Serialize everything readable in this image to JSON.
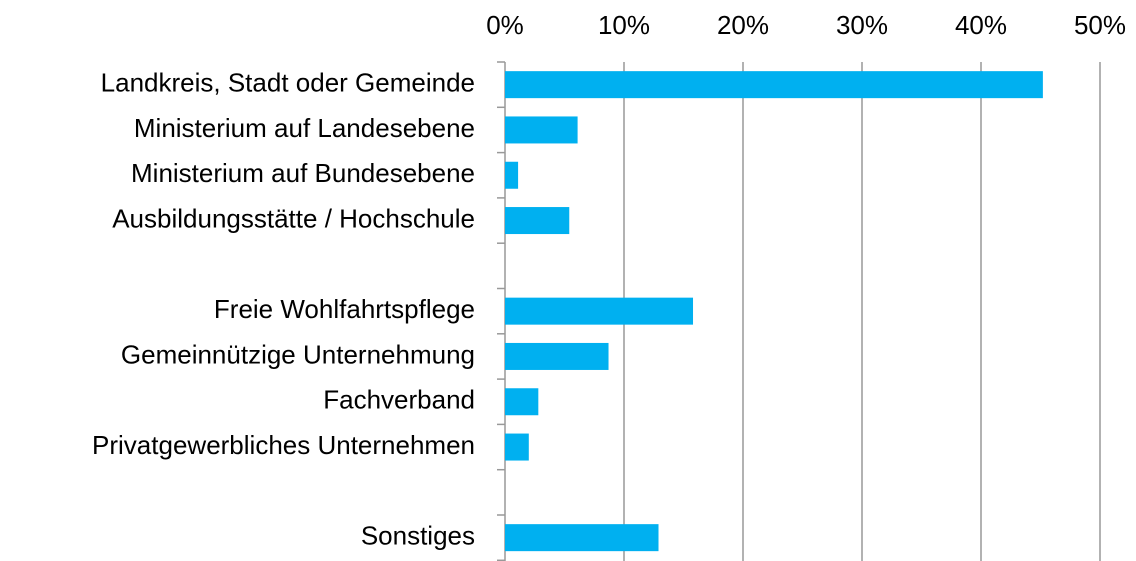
{
  "chart_data": {
    "type": "barh",
    "categories": [
      "Landkreis, Stadt oder Gemeinde",
      "Ministerium auf Landesebene",
      "Ministerium auf Bundesebene",
      "Ausbildungsstätte / Hochschule",
      null,
      "Freie Wohlfahrtspflege",
      "Gemeinnützige Unternehmung",
      "Fachverband",
      "Privatgewerbliches Unternehmen",
      null,
      "Sonstiges"
    ],
    "values": [
      45.2,
      6.1,
      1.1,
      5.4,
      null,
      15.8,
      8.7,
      2.8,
      2.0,
      null,
      12.9
    ],
    "color": "#00b0f0",
    "xlim": [
      0,
      50
    ],
    "xticks": [
      {
        "value": 0,
        "label": "0%"
      },
      {
        "value": 10,
        "label": "10%"
      },
      {
        "value": 20,
        "label": "20%"
      },
      {
        "value": 30,
        "label": "30%"
      },
      {
        "value": 40,
        "label": "40%"
      },
      {
        "value": 50,
        "label": "50%"
      }
    ],
    "grid": true
  }
}
